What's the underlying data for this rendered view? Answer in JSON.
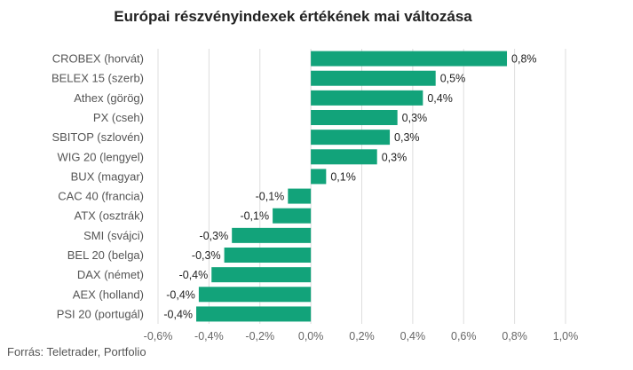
{
  "title": "Európai részvényindexek értékének mai változása",
  "source": "Forrás: Teletrader, Portfolio",
  "chart_data": {
    "type": "bar",
    "orientation": "horizontal",
    "title": "Európai részvényindexek értékének mai változása",
    "categories": [
      "CROBEX (horvát)",
      "BELEX 15 (szerb)",
      "Athex (görög)",
      "PX (cseh)",
      "SBITOP (szlovén)",
      "WIG 20 (lengyel)",
      "BUX (magyar)",
      "CAC 40 (francia)",
      "ATX (osztrák)",
      "SMI (svájci)",
      "BEL 20 (belga)",
      "DAX (német)",
      "AEX (holland)",
      "PSI 20 (portugál)"
    ],
    "values": [
      0.77,
      0.49,
      0.44,
      0.34,
      0.31,
      0.26,
      0.06,
      -0.09,
      -0.15,
      -0.31,
      -0.34,
      -0.39,
      -0.44,
      -0.45
    ],
    "value_labels": [
      "0,8%",
      "0,5%",
      "0,4%",
      "0,3%",
      "0,3%",
      "0,3%",
      "0,1%",
      "-0,1%",
      "-0,1%",
      "-0,3%",
      "-0,3%",
      "-0,4%",
      "-0,4%",
      "-0,4%"
    ],
    "x_ticks": [
      -0.6,
      -0.4,
      -0.2,
      0.0,
      0.2,
      0.4,
      0.6,
      0.8,
      1.0
    ],
    "x_tick_labels": [
      "-0,6%",
      "-0,4%",
      "-0,2%",
      "0,0%",
      "0,2%",
      "0,4%",
      "0,6%",
      "0,8%",
      "1,0%"
    ],
    "xlim": [
      -0.6,
      1.0
    ],
    "bar_color": "#12a37a",
    "grid": true
  }
}
